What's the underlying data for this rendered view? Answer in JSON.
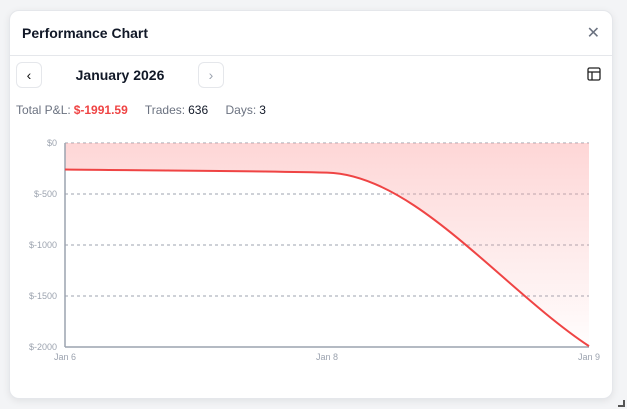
{
  "modal": {
    "title": "Performance Chart",
    "close_icon": "close-icon"
  },
  "nav": {
    "month": "January 2026",
    "prev_icon": "chevron-left-icon",
    "next_icon": "chevron-right-icon",
    "view_icon": "table-icon"
  },
  "stats": {
    "pnl_label": "Total P&L:",
    "pnl_value": "$-1991.59",
    "trades_label": "Trades:",
    "trades_value": "636",
    "days_label": "Days:",
    "days_value": "3"
  },
  "colors": {
    "line": "#ef4444",
    "fill": "#fca5a5",
    "negative": "#ef4444"
  },
  "chart_data": {
    "type": "area",
    "x": [
      "Jan 6",
      "Jan 8",
      "Jan 9"
    ],
    "series": [
      {
        "values": [
          -260,
          -290,
          -1991.59
        ]
      }
    ],
    "yticks": [
      0,
      -500,
      -1000,
      -1500,
      -2000
    ],
    "ytick_labels": [
      "$0",
      "$-500",
      "$-1000",
      "$-1500",
      "$-2000"
    ],
    "ylim": [
      -2000,
      0
    ],
    "grid": true
  }
}
